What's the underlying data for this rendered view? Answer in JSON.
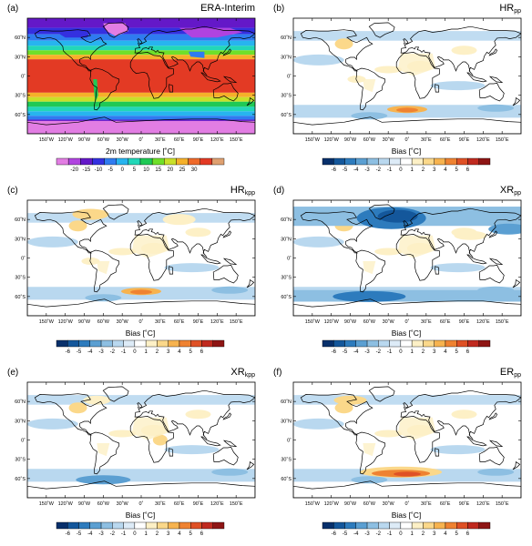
{
  "panels": [
    {
      "id": "a",
      "label": "(a)",
      "title_main": "ERA-Interim",
      "title_sub": "",
      "cb_title": "2m temperature [˚C]",
      "kind": "temp"
    },
    {
      "id": "b",
      "label": "(b)",
      "title_main": "HR",
      "title_sub": "pp",
      "cb_title": "Bias [˚C]",
      "kind": "bias"
    },
    {
      "id": "c",
      "label": "(c)",
      "title_main": "HR",
      "title_sub": "kpp",
      "cb_title": "Bias [˚C]",
      "kind": "bias"
    },
    {
      "id": "d",
      "label": "(d)",
      "title_main": "XR",
      "title_sub": "pp",
      "cb_title": "Bias [˚C]",
      "kind": "bias"
    },
    {
      "id": "e",
      "label": "(e)",
      "title_main": "XR",
      "title_sub": "kpp",
      "cb_title": "Bias [˚C]",
      "kind": "bias"
    },
    {
      "id": "f",
      "label": "(f)",
      "title_main": "ER",
      "title_sub": "pp",
      "cb_title": "Bias [˚C]",
      "kind": "bias"
    }
  ],
  "lat_ticks": [
    "60˚N",
    "30˚N",
    "0˚",
    "30˚S",
    "60˚S"
  ],
  "lon_ticks": [
    "150˚W",
    "120˚W",
    "90˚W",
    "60˚W",
    "30˚W",
    "0˚",
    "30˚E",
    "60˚E",
    "90˚E",
    "120˚E",
    "150˚E"
  ],
  "temp_colorbar": {
    "labels": [
      "-20",
      "-15",
      "-10",
      "-5",
      "0",
      "5",
      "10",
      "15",
      "20",
      "25",
      "30"
    ],
    "colors": [
      "#e27de3",
      "#b043e0",
      "#6418c8",
      "#3430e0",
      "#2f7bf0",
      "#27b4ef",
      "#22d7b8",
      "#1fc955",
      "#6fdf29",
      "#c8e02a",
      "#f5b02a",
      "#ef6a2a",
      "#e33a24",
      "#dfa070"
    ]
  },
  "bias_colorbar": {
    "labels": [
      "-6",
      "-5",
      "-4",
      "-3",
      "-2",
      "-1",
      "0",
      "1",
      "2",
      "3",
      "4",
      "5",
      "6"
    ],
    "colors": [
      "#08306b",
      "#14579b",
      "#2d7bbd",
      "#5b9fd2",
      "#8dbfe2",
      "#b9d8ef",
      "#ddebf7",
      "#ffffff",
      "#fdf0c6",
      "#fbd88a",
      "#f7b34f",
      "#ef8231",
      "#df5125",
      "#c02a1f",
      "#8e1514"
    ]
  }
}
